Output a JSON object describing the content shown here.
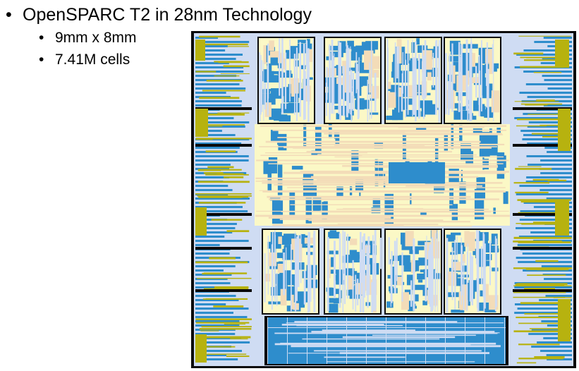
{
  "slide": {
    "title_bullet": "OpenSPARC T2 in 28nm Technology",
    "sub_bullets": [
      "9mm x 8mm",
      "7.41M cells"
    ],
    "bullet_glyph": "•"
  },
  "colors": {
    "die_border": "#0a0a0a",
    "cell_blue": "#2e8dcc",
    "light_blue": "#cfdcf3",
    "cream": "#fbf8c6",
    "peach": "#f3dcb8",
    "olive_yellow": "#b7b20f"
  },
  "figure": {
    "icon": "chip-layout-image"
  }
}
